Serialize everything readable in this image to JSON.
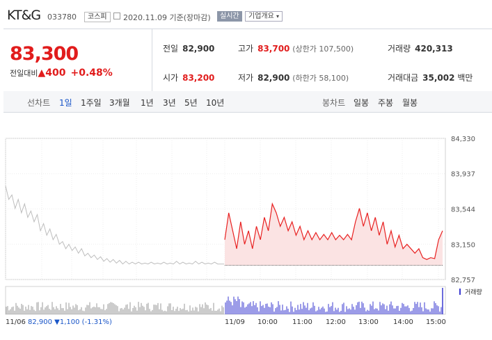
{
  "header": {
    "name": "KT&G",
    "code": "033780",
    "market": "코스피",
    "date": "2020.11.09 기준(장마감)",
    "realtime_btn": "실시간",
    "corp_btn": "기업개요"
  },
  "quote": {
    "price": "83,300",
    "change_label": "전일대비",
    "change_value": "▲400",
    "change_pct": "+0.48%",
    "prev_label": "전일",
    "prev_value": "82,900",
    "high_label": "고가",
    "high_value": "83,700",
    "high_sub": "(상한가 107,500)",
    "volume_label": "거래량",
    "volume_value": "420,313",
    "open_label": "시가",
    "open_value": "83,200",
    "low_label": "저가",
    "low_value": "82,900",
    "low_sub": "(하한가 58,100)",
    "amount_label": "거래대금",
    "amount_value": "35,002",
    "amount_unit": "백만"
  },
  "tabs": {
    "line_label": "선차트",
    "line_tabs": [
      "1일",
      "1주일",
      "3개월",
      "1년",
      "3년",
      "5년",
      "10년"
    ],
    "candle_label": "봉차트",
    "candle_tabs": [
      "일봉",
      "주봉",
      "월봉"
    ]
  },
  "chart_data": {
    "type": "line",
    "y_ticks": [
      "84,330",
      "83,937",
      "83,544",
      "83,150",
      "82,757"
    ],
    "ylim": [
      82757,
      84330
    ],
    "x_ticks": [
      "11/06",
      "11/09",
      "10:00",
      "11:00",
      "12:00",
      "13:00",
      "14:00",
      "15:00"
    ],
    "prev_day_summary": "82,900 ▼1,100 (-1.31%)",
    "prev_day_summary_date": "11/06",
    "volume_label": "거래량",
    "colors": {
      "today": "#e82020",
      "today_fill": "#fbe3e3",
      "prev": "#bdbdbd",
      "volume": "#3a3ad0",
      "prev_volume": "#999999"
    },
    "prev_day": [
      83800,
      83650,
      83700,
      83550,
      83650,
      83500,
      83600,
      83450,
      83520,
      83400,
      83480,
      83300,
      83380,
      83250,
      83320,
      83200,
      83260,
      83150,
      83180,
      83100,
      83150,
      83080,
      83120,
      83050,
      83100,
      83020,
      83050,
      83000,
      83030,
      82980,
      83010,
      82960,
      82990,
      82950,
      82980,
      82940,
      82970,
      82930,
      82960,
      82930,
      82950,
      82930,
      82950,
      82930,
      82940,
      82930,
      82950,
      82930,
      82940,
      82930,
      82950,
      82930,
      82940,
      82930,
      82960,
      82930,
      82950,
      82930,
      82940,
      82930,
      82960,
      82930,
      82950,
      82930,
      82940,
      82930,
      82950,
      82930,
      82930,
      82930
    ],
    "today": [
      83200,
      83500,
      83300,
      83100,
      83400,
      83150,
      83300,
      83100,
      83350,
      83200,
      83450,
      83300,
      83600,
      83500,
      83350,
      83450,
      83300,
      83400,
      83250,
      83350,
      83200,
      83300,
      83200,
      83280,
      83200,
      83260,
      83200,
      83280,
      83200,
      83250,
      83200,
      83260,
      83200,
      83400,
      83550,
      83350,
      83500,
      83300,
      83450,
      83250,
      83400,
      83150,
      83300,
      83120,
      83250,
      83100,
      83150,
      83100,
      83050,
      83100,
      83000,
      82980,
      83000,
      82990,
      83200,
      83300
    ]
  }
}
